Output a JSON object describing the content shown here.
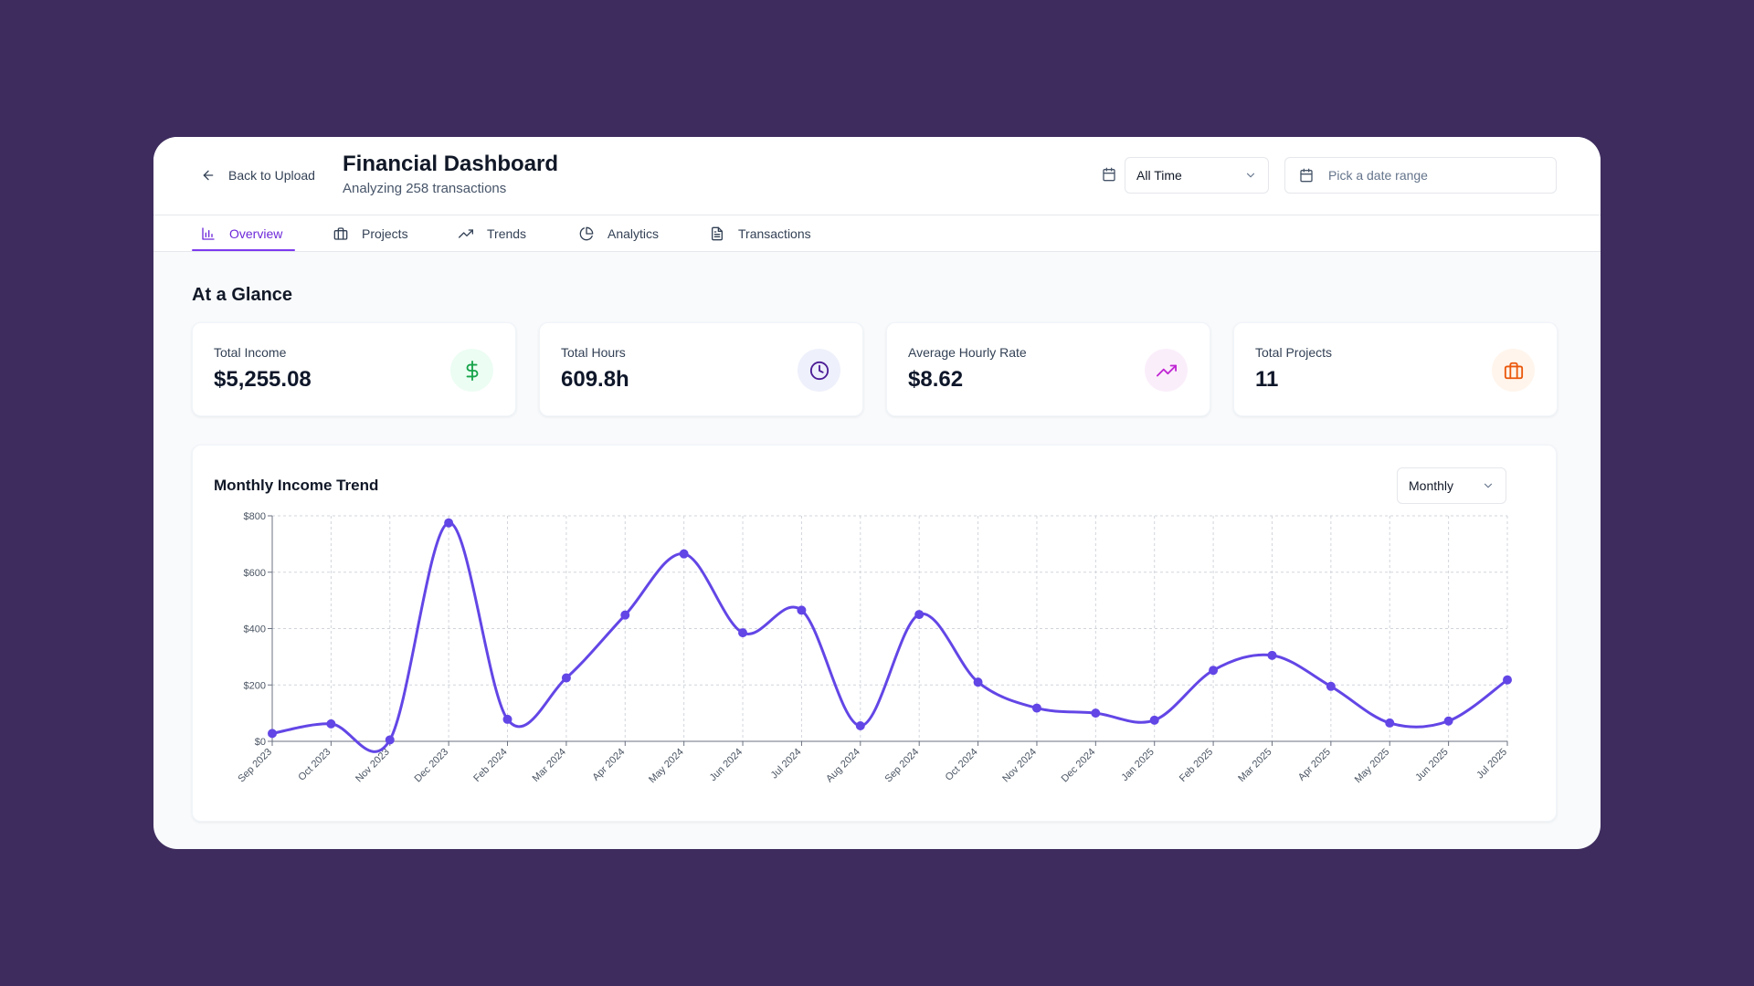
{
  "header": {
    "back_label": "Back to Upload",
    "title": "Financial Dashboard",
    "subtitle": "Analyzing 258 transactions",
    "period_value": "All Time",
    "date_placeholder": "Pick a date range"
  },
  "tabs": [
    {
      "label": "Overview",
      "icon": "bar-chart-icon",
      "active": true
    },
    {
      "label": "Projects",
      "icon": "briefcase-icon",
      "active": false
    },
    {
      "label": "Trends",
      "icon": "trending-up-icon",
      "active": false
    },
    {
      "label": "Analytics",
      "icon": "pie-chart-icon",
      "active": false
    },
    {
      "label": "Transactions",
      "icon": "file-text-icon",
      "active": false
    }
  ],
  "overview": {
    "section_title": "At a Glance",
    "cards": [
      {
        "label": "Total Income",
        "value": "$5,255.08",
        "icon": "dollar-icon",
        "color": "#16a34a",
        "bg": "#ecfdf3"
      },
      {
        "label": "Total Hours",
        "value": "609.8h",
        "icon": "clock-icon",
        "color": "#4c1d95",
        "bg": "#eef0fb"
      },
      {
        "label": "Average Hourly Rate",
        "value": "$8.62",
        "icon": "trending-up-icon",
        "color": "#c026d3",
        "bg": "#fbeefb"
      },
      {
        "label": "Total Projects",
        "value": "11",
        "icon": "briefcase-icon",
        "color": "#ea580c",
        "bg": "#fff5ec"
      }
    ]
  },
  "chart_section": {
    "title": "Monthly Income Trend",
    "granularity": "Monthly"
  },
  "colors": {
    "accent": "#7c3aed",
    "line": "#6346e6",
    "background": "#3e2c5e"
  },
  "chart_data": {
    "type": "line",
    "title": "Monthly Income Trend",
    "xlabel": "",
    "ylabel": "",
    "categories": [
      "Sep 2023",
      "Oct 2023",
      "Nov 2023",
      "Dec 2023",
      "Feb 2024",
      "Mar 2024",
      "Apr 2024",
      "May 2024",
      "Jun 2024",
      "Jul 2024",
      "Aug 2024",
      "Sep 2024",
      "Oct 2024",
      "Nov 2024",
      "Dec 2024",
      "Jan 2025",
      "Feb 2025",
      "Mar 2025",
      "Apr 2025",
      "May 2025",
      "Jun 2025",
      "Jul 2025"
    ],
    "series": [
      {
        "name": "Income",
        "values": [
          28,
          62,
          5,
          775,
          78,
          225,
          448,
          665,
          385,
          465,
          55,
          450,
          210,
          118,
          100,
          75,
          252,
          305,
          195,
          65,
          72,
          218
        ]
      }
    ],
    "ylim": [
      0,
      800
    ],
    "yticks": [
      0,
      200,
      400,
      600,
      800
    ],
    "ytick_labels": [
      "$0",
      "$200",
      "$400",
      "$600",
      "$800"
    ],
    "grid": true,
    "legend": "none"
  }
}
